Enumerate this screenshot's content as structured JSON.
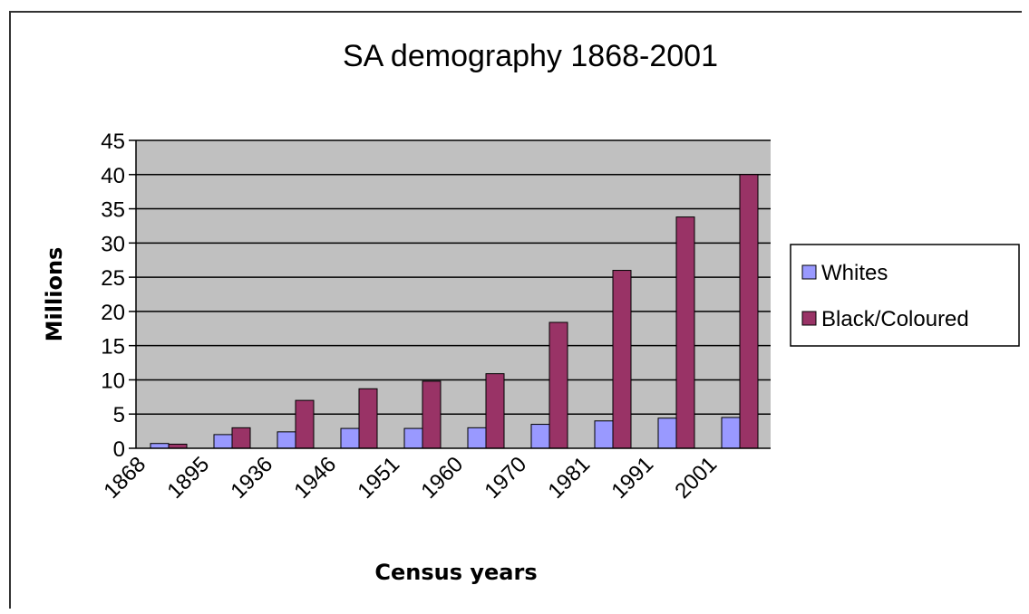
{
  "chart_data": {
    "type": "bar",
    "title": "SA demography 1868-2001",
    "xlabel": "Census years",
    "ylabel": "Millions",
    "categories": [
      "1868",
      "1895",
      "1936",
      "1946",
      "1951",
      "1960",
      "1970",
      "1981",
      "1991",
      "2001"
    ],
    "ylim": [
      0,
      45
    ],
    "yticks": [
      0,
      5,
      10,
      15,
      20,
      25,
      30,
      35,
      40,
      45
    ],
    "grid": true,
    "legend_position": "right",
    "series": [
      {
        "name": "Whites",
        "color": "#9999ff",
        "values": [
          0.7,
          2.0,
          2.4,
          2.9,
          2.9,
          3.0,
          3.5,
          4.0,
          4.4,
          4.5
        ]
      },
      {
        "name": "Black/Coloured",
        "color": "#993366",
        "values": [
          0.6,
          3.0,
          7.0,
          8.7,
          9.8,
          10.9,
          18.4,
          26.0,
          33.8,
          40.0
        ]
      }
    ],
    "plot_background": "#c0c0c0"
  }
}
